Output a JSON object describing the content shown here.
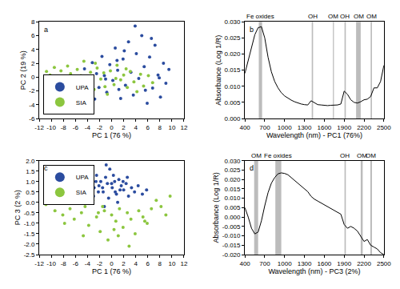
{
  "chart_data": [
    {
      "type": "scatter",
      "label": "a",
      "xlabel": "PC 1 (76 %)",
      "ylabel": "PC 2 (19 %)",
      "xlim": [
        -12,
        12
      ],
      "xticks": [
        -12,
        -10,
        -8,
        -6,
        -4,
        -2,
        0,
        2,
        4,
        6,
        8,
        10,
        12
      ],
      "ylim": [
        -6,
        8
      ],
      "yticks": [
        -6,
        -4,
        -2,
        0,
        2,
        4,
        6,
        8
      ],
      "legend": "bottom left",
      "series": [
        {
          "name": "UPA",
          "color": "#2b4c9f",
          "marker": "circle",
          "x": [
            -4.5,
            -3.8,
            -3.2,
            -2.5,
            -2.1,
            -1.6,
            -1.2,
            -0.8,
            -0.3,
            0.2,
            0.6,
            1.0,
            1.5,
            1.9,
            2.3,
            2.8,
            3.2,
            3.6,
            4.1,
            4.5,
            5.0,
            5.4,
            5.9,
            6.3,
            6.8,
            7.2,
            7.7,
            8.1,
            8.6,
            9.0,
            9.5,
            -1.0,
            0.9,
            2.1,
            3.9,
            5.6,
            6.6,
            7.9,
            1.2,
            -2.8
          ],
          "y": [
            1.2,
            -0.8,
            2.1,
            0.5,
            -1.5,
            3.0,
            0.2,
            -2.2,
            1.8,
            -0.5,
            4.2,
            1.0,
            -3.1,
            2.6,
            -1.2,
            5.1,
            0.7,
            -2.6,
            3.4,
            -0.2,
            6.0,
            1.5,
            -3.8,
            2.9,
            -1.6,
            4.6,
            0.3,
            -2.9,
            2.0,
            -0.9,
            1.1,
            -0.3,
            2.4,
            3.8,
            7.4,
            -1.9,
            5.6,
            -0.1,
            -1.8,
            -3.2
          ]
        },
        {
          "name": "SIA",
          "color": "#8cc63f",
          "marker": "circle",
          "x": [
            -10.8,
            -10.2,
            -9.5,
            -9.0,
            -8.4,
            -7.9,
            -7.3,
            -6.8,
            -6.2,
            -5.7,
            -5.1,
            -4.6,
            -4.0,
            -3.5,
            -2.9,
            -2.4,
            -1.8,
            -1.3,
            -0.7,
            -0.2,
            0.4,
            0.9,
            1.5,
            2.0,
            2.6,
            3.1,
            3.7,
            4.2,
            4.8,
            5.3,
            6.1,
            6.8,
            -8.8,
            -6.5,
            -4.3,
            -2.7,
            -1.1,
            0.7,
            2.4,
            -5.4
          ],
          "y": [
            0.8,
            0.3,
            1.4,
            0.1,
            0.9,
            -0.4,
            1.6,
            0.5,
            -0.9,
            1.1,
            0.2,
            2.3,
            -0.6,
            0.7,
            -1.8,
            1.3,
            -0.3,
            0.6,
            -2.5,
            0.9,
            -1.1,
            1.7,
            -0.4,
            0.3,
            -1.5,
            0.8,
            -0.7,
            -2.1,
            0.4,
            -1.3,
            0.2,
            -0.8,
            -0.7,
            0.0,
            -1.2,
            2.0,
            -1.4,
            -0.2,
            1.2,
            -1.6
          ]
        }
      ]
    },
    {
      "type": "line",
      "label": "b",
      "xlabel": "Wavelength (nm) - PC1 (76%)",
      "ylabel": "Absorbance (Log 1/R)",
      "xlim": [
        400,
        2500
      ],
      "xticks": [
        400,
        700,
        1000,
        1300,
        1600,
        1900,
        2200,
        2500
      ],
      "ylim": [
        0,
        0.03
      ],
      "yticks": [
        {
          "value": 0,
          "label": "0.000"
        },
        {
          "value": 0.005,
          "label": "0.005"
        },
        {
          "value": 0.01,
          "label": "0.010"
        },
        {
          "value": 0.015,
          "label": "0.015"
        },
        {
          "value": 0.02,
          "label": "0.020"
        },
        {
          "value": 0.025,
          "label": "0.025"
        },
        {
          "value": 0.03,
          "label": "0.030"
        }
      ],
      "x": [
        400,
        450,
        500,
        550,
        600,
        650,
        700,
        750,
        800,
        850,
        900,
        950,
        1000,
        1050,
        1100,
        1150,
        1200,
        1250,
        1300,
        1350,
        1400,
        1450,
        1500,
        1550,
        1600,
        1650,
        1700,
        1750,
        1800,
        1850,
        1900,
        1950,
        2000,
        2050,
        2100,
        2150,
        2200,
        2250,
        2300,
        2350,
        2400,
        2450,
        2500
      ],
      "series": [
        {
          "color": "#000000",
          "line_style": "solid",
          "values": [
            0.014,
            0.018,
            0.022,
            0.026,
            0.0282,
            0.0285,
            0.025,
            0.019,
            0.0145,
            0.0115,
            0.0095,
            0.008,
            0.007,
            0.0063,
            0.0057,
            0.0052,
            0.0048,
            0.0045,
            0.0043,
            0.0042,
            0.0055,
            0.0048,
            0.0043,
            0.0042,
            0.0041,
            0.004,
            0.0041,
            0.0042,
            0.0042,
            0.0045,
            0.0085,
            0.0075,
            0.0058,
            0.005,
            0.0048,
            0.0052,
            0.0058,
            0.006,
            0.0068,
            0.0095,
            0.0095,
            0.0115,
            0.0165
          ]
        }
      ],
      "bands": [
        {
          "label": "Fe oxides",
          "x0": 610,
          "x1": 660
        },
        {
          "label": "OH",
          "x0": 1410,
          "x1": 1430
        },
        {
          "label": "OM",
          "x0": 1730,
          "x1": 1745
        },
        {
          "label": "OH",
          "x0": 1905,
          "x1": 1925
        },
        {
          "label": "OM",
          "x0": 2080,
          "x1": 2150
        },
        {
          "label": "OM",
          "x0": 2300,
          "x1": 2320
        }
      ]
    },
    {
      "type": "scatter",
      "label": "c",
      "xlabel": "PC 1 (76 %)",
      "ylabel": "PC 3 (2 %)",
      "xlim": [
        -12,
        12
      ],
      "xticks": [
        -12,
        -10,
        -8,
        -6,
        -4,
        -2,
        0,
        2,
        4,
        6,
        8,
        10,
        12
      ],
      "ylim": [
        -2.5,
        2.0
      ],
      "yticks": [
        -2.5,
        {
          "value": -2,
          "label": "-2.0"
        },
        -1.5,
        {
          "value": -1,
          "label": "-1.0"
        },
        -0.5,
        {
          "value": 0,
          "label": "0.0"
        },
        0.5,
        {
          "value": 1,
          "label": "1.0"
        },
        1.5,
        {
          "value": 2,
          "label": "2.0"
        }
      ],
      "legend": "top left",
      "series": [
        {
          "name": "UPA",
          "color": "#2b4c9f",
          "marker": "circle",
          "x": [
            -4.8,
            -4.2,
            -3.7,
            -3.3,
            -2.9,
            -2.5,
            -2.1,
            -1.8,
            -1.4,
            -1.0,
            -0.7,
            -0.3,
            0.1,
            0.5,
            0.8,
            1.2,
            1.6,
            2.0,
            2.4,
            2.8,
            3.3,
            3.8,
            4.4,
            5.1,
            5.8,
            -3.0,
            -2.2,
            -1.5,
            -0.5,
            0.3,
            1.0,
            1.9,
            -1.2,
            0.0,
            -2.6,
            2.6,
            -0.9,
            1.4,
            -3.9,
            0.6
          ],
          "y": [
            0.6,
            0.9,
            0.4,
            1.1,
            0.7,
            1.3,
            0.8,
            1.0,
            0.5,
            1.2,
            0.9,
            1.6,
            0.7,
            1.0,
            0.4,
            1.1,
            0.8,
            0.6,
            0.9,
            0.3,
            0.7,
            0.5,
            0.8,
            0.4,
            0.6,
            0.3,
            0.5,
            0.7,
            0.2,
            1.3,
            0.0,
            1.0,
            -0.2,
            0.9,
            1.0,
            1.2,
            1.8,
            0.6,
            0.2,
            0.5
          ]
        },
        {
          "name": "SIA",
          "color": "#8cc63f",
          "marker": "circle",
          "x": [
            -10.9,
            -10.1,
            -9.4,
            -8.8,
            -8.1,
            -7.5,
            -6.9,
            -6.2,
            -5.6,
            -5.0,
            -4.4,
            -3.8,
            -3.1,
            -2.5,
            -1.9,
            -1.2,
            -0.6,
            0.0,
            0.7,
            1.3,
            1.9,
            2.6,
            3.2,
            3.9,
            4.5,
            5.2,
            5.9,
            6.6,
            7.4,
            8.2,
            9.0,
            9.7,
            -7.8,
            -4.7,
            -2.2,
            0.4,
            2.9,
            5.5,
            -1.5,
            1.1
          ],
          "y": [
            -0.1,
            0.2,
            -0.4,
            0.1,
            -0.6,
            0.0,
            -0.3,
            -0.8,
            0.3,
            -0.5,
            -0.2,
            -1.1,
            0.1,
            -0.7,
            -1.4,
            -0.4,
            -1.8,
            -0.6,
            -0.9,
            -0.3,
            -1.2,
            -0.5,
            -0.8,
            -1.5,
            -0.4,
            -0.7,
            -1.0,
            -0.3,
            0.1,
            -0.2,
            -0.6,
            0.3,
            -1.0,
            -1.6,
            -0.5,
            -1.3,
            -2.1,
            -0.9,
            -0.2,
            -1.6
          ]
        }
      ]
    },
    {
      "type": "line",
      "label": "d",
      "xlabel": "Wavelength (nm) - PC3 (2%)",
      "ylabel": "Absorbance (Log 1/R)",
      "xlim": [
        400,
        2500
      ],
      "xticks": [
        400,
        700,
        1000,
        1300,
        1600,
        1900,
        2200,
        2500
      ],
      "ylim": [
        -0.02,
        0.03
      ],
      "yticks": [
        {
          "value": -0.02,
          "label": "-0.020"
        },
        {
          "value": -0.015,
          "label": "-0.015"
        },
        {
          "value": -0.01,
          "label": "-0.010"
        },
        {
          "value": -0.005,
          "label": "-0.005"
        },
        {
          "value": 0,
          "label": "0.000"
        },
        {
          "value": 0.005,
          "label": "0.005"
        },
        {
          "value": 0.01,
          "label": "0.010"
        },
        {
          "value": 0.015,
          "label": "0.015"
        },
        {
          "value": 0.02,
          "label": "0.020"
        },
        {
          "value": 0.025,
          "label": "0.025"
        },
        {
          "value": 0.03,
          "label": "0.030"
        }
      ],
      "x": [
        400,
        450,
        500,
        550,
        600,
        650,
        700,
        750,
        800,
        850,
        900,
        950,
        1000,
        1050,
        1100,
        1150,
        1200,
        1250,
        1300,
        1350,
        1400,
        1450,
        1500,
        1550,
        1600,
        1650,
        1700,
        1750,
        1800,
        1850,
        1900,
        1950,
        2000,
        2050,
        2100,
        2150,
        2200,
        2250,
        2300,
        2350,
        2400,
        2450,
        2500
      ],
      "series": [
        {
          "color": "#000000",
          "line_style": "solid",
          "values": [
            0.005,
            0.0,
            -0.006,
            -0.009,
            -0.008,
            -0.002,
            0.006,
            0.013,
            0.018,
            0.021,
            0.023,
            0.0235,
            0.0232,
            0.0225,
            0.021,
            0.0195,
            0.018,
            0.0165,
            0.015,
            0.0135,
            0.011,
            0.0095,
            0.0085,
            0.0075,
            0.0065,
            0.0055,
            0.0045,
            0.0035,
            0.0025,
            0.0015,
            -0.004,
            -0.006,
            -0.005,
            -0.006,
            -0.0075,
            -0.01,
            -0.013,
            -0.012,
            -0.015,
            -0.016,
            -0.017,
            -0.019,
            -0.02
          ]
        }
      ],
      "bands": [
        {
          "label": "OM",
          "x0": 540,
          "x1": 600
        },
        {
          "label": "Fe oxides",
          "x0": 860,
          "x1": 950
        },
        {
          "label": "OH",
          "x0": 1905,
          "x1": 1925
        },
        {
          "label": "OM",
          "x0": 2150,
          "x1": 2180
        },
        {
          "label": "OM",
          "x0": 2295,
          "x1": 2320
        }
      ]
    }
  ]
}
